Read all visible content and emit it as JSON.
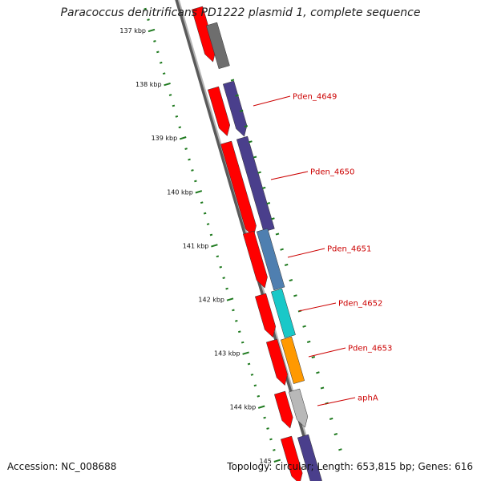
{
  "title": "Paracoccus denitrificans PD1222 plasmid 1, complete sequence",
  "accession_text": "Accession: NC_008688",
  "topology_text": "Topology: circular; Length: 653,815 bp; Genes: 616",
  "colors": {
    "backbone": "#8a8a8a",
    "tick": "#1f7a1f",
    "label": "#cc0000",
    "gene_red": "#ff0000",
    "dark_grey": "#6e6e6e",
    "indigo": "#4a3f8c",
    "steel_blue": "#4f7fb0",
    "cyan": "#19c8c8",
    "orange": "#ff9900",
    "light_grey": "#b8b8b8"
  },
  "ticks": [
    {
      "kbp": 137,
      "label": "137 kbp"
    },
    {
      "kbp": 138,
      "label": "138 kbp"
    },
    {
      "kbp": 139,
      "label": "139 kbp"
    },
    {
      "kbp": 140,
      "label": "140 kbp"
    },
    {
      "kbp": 141,
      "label": "141 kbp"
    },
    {
      "kbp": 142,
      "label": "142 kbp"
    },
    {
      "kbp": 143,
      "label": "143 kbp"
    },
    {
      "kbp": 144,
      "label": "144 kbp"
    },
    {
      "kbp": 145,
      "label": "145"
    }
  ],
  "gene_labels": [
    "Pden_4649",
    "Pden_4650",
    "Pden_4651",
    "Pden_4652",
    "Pden_4653",
    "aphA"
  ]
}
